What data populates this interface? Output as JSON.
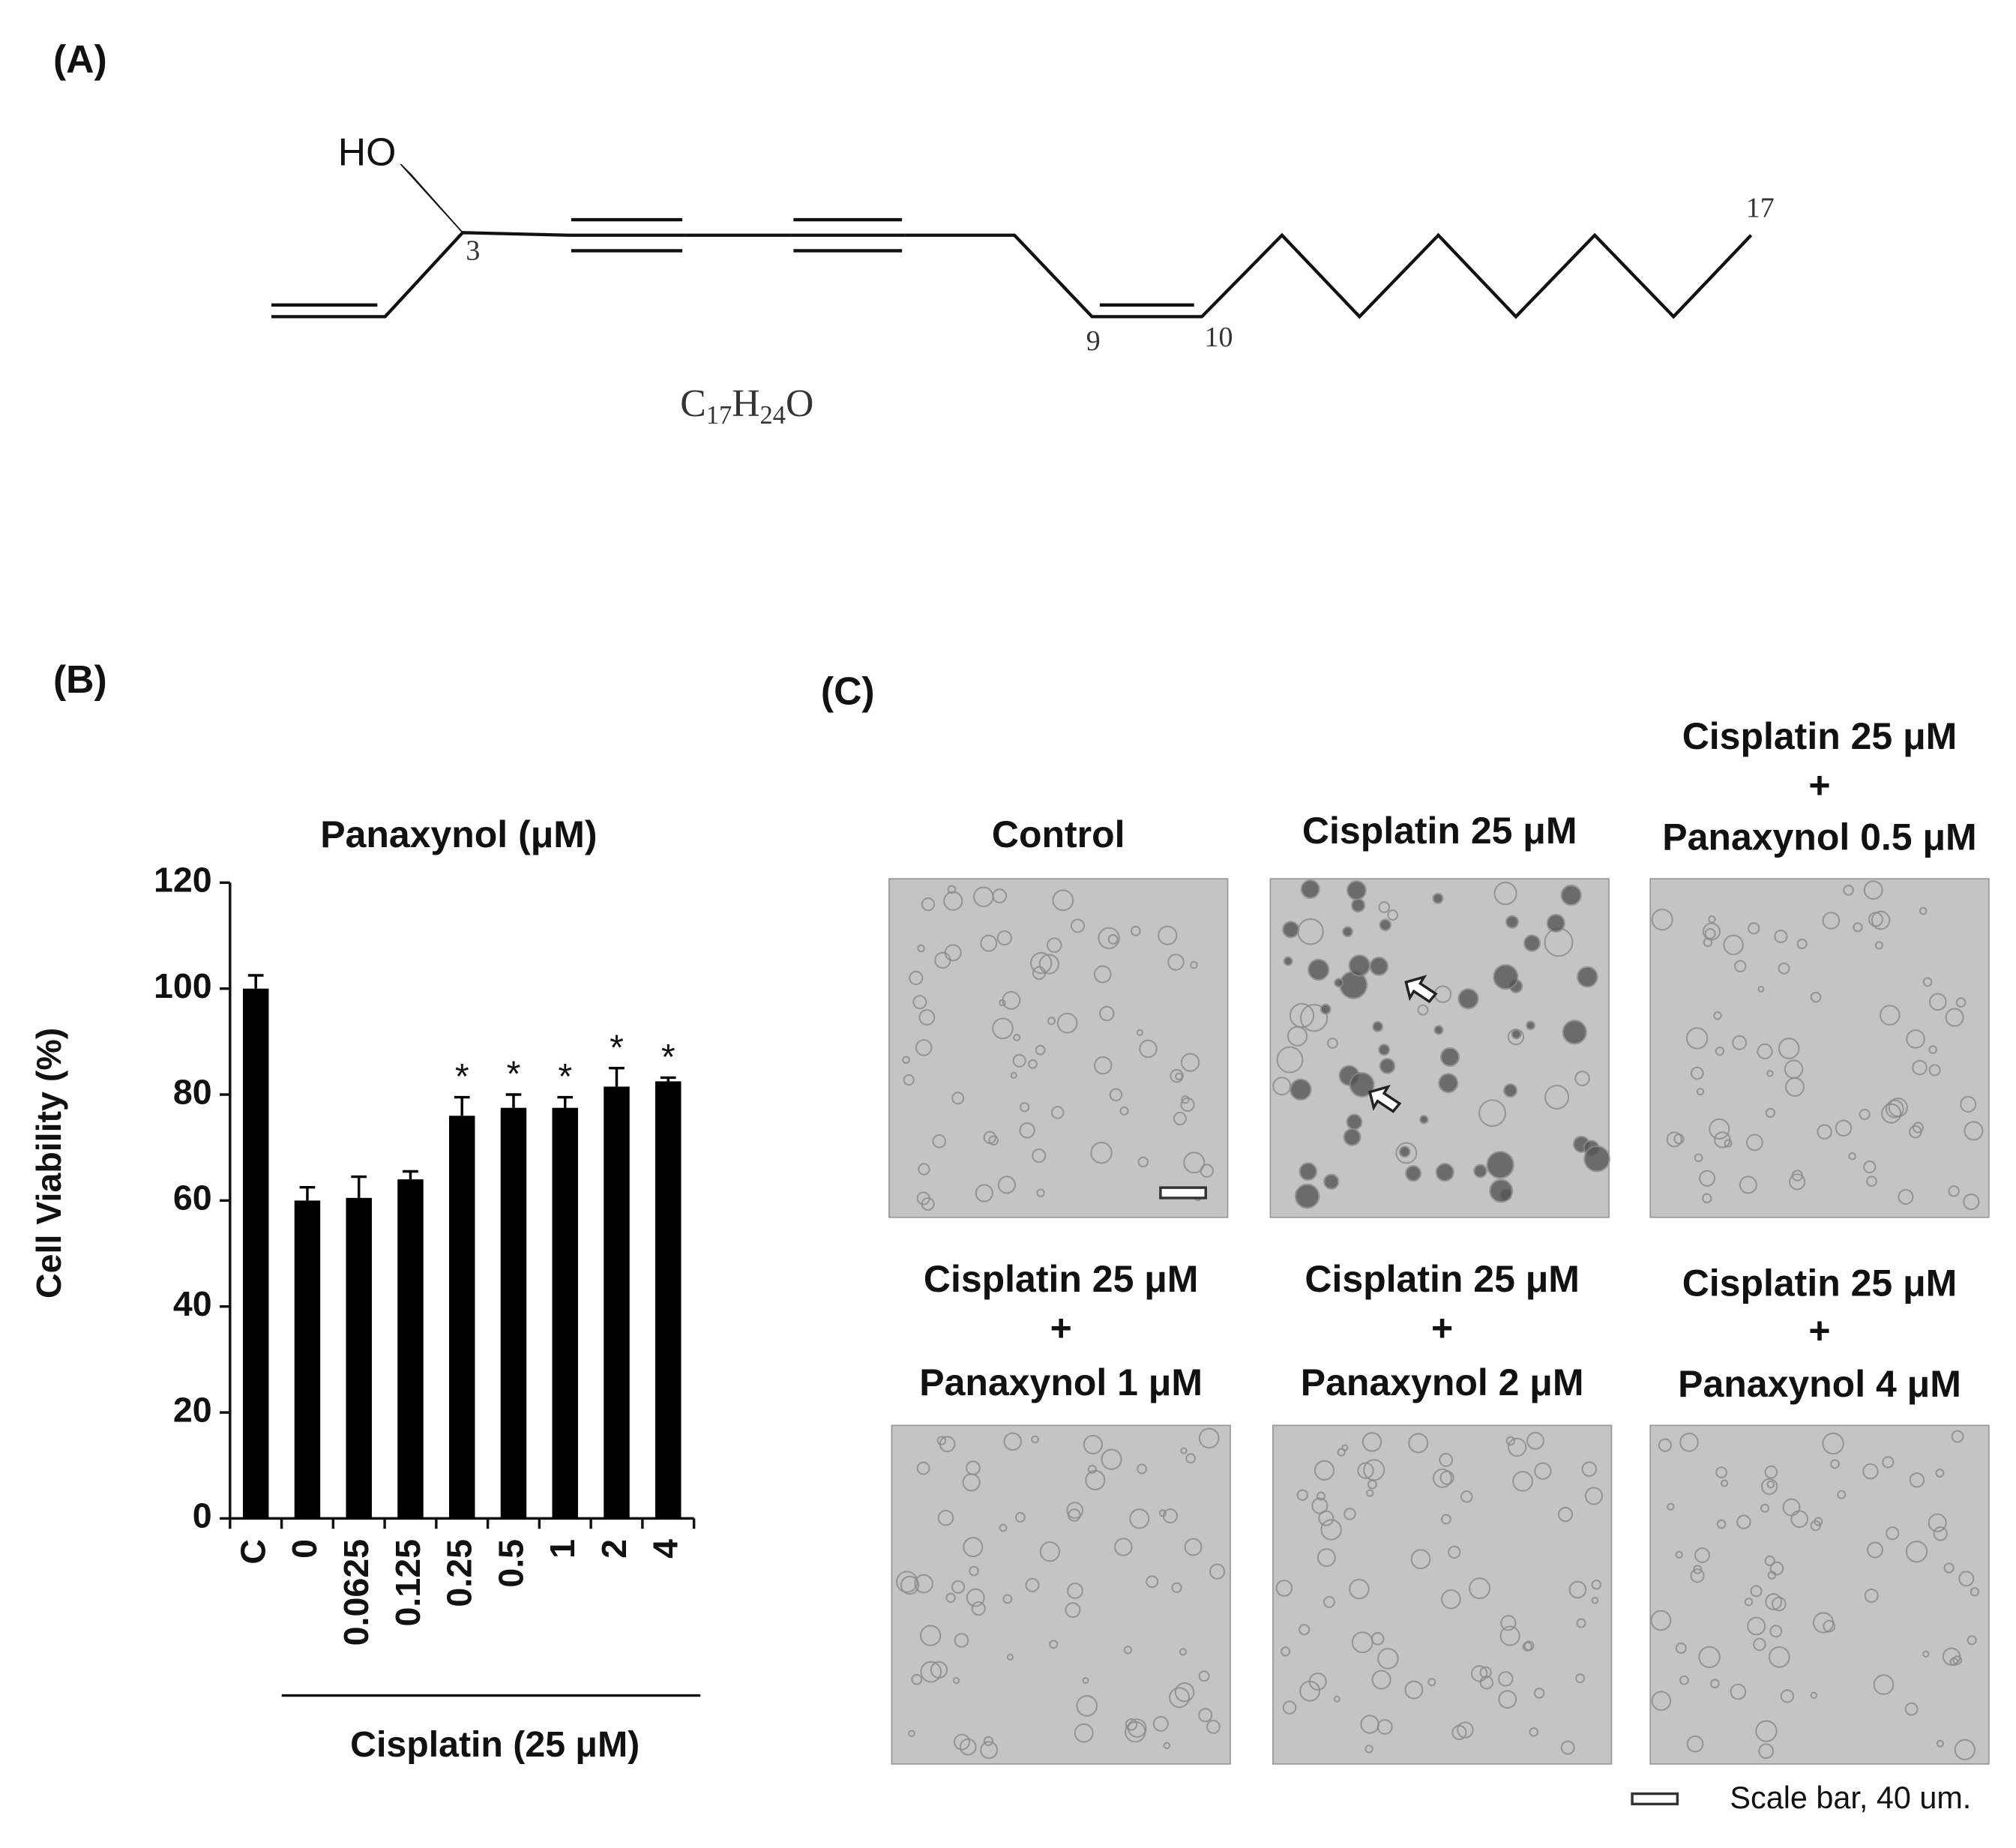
{
  "panel_labels": [
    "(A)",
    "(B)",
    "(C)"
  ],
  "structure": {
    "hydroxyl": "HO",
    "atom_labels": [
      "3",
      "9",
      "10",
      "17"
    ],
    "formula_parts": [
      "C",
      "17",
      "H",
      "24",
      "O"
    ]
  },
  "chart_data": {
    "type": "bar",
    "title": "Panaxynol (μM)",
    "y_label": "Cell Viability (%)",
    "x_label": "Cisplatin (25 μM)",
    "categories": [
      "C",
      "0",
      "0.0625",
      "0.125",
      "0.25",
      "0.5",
      "1",
      "2",
      "4"
    ],
    "values": [
      100,
      60,
      60.5,
      64,
      76,
      77.5,
      77.5,
      81.5,
      82.5
    ],
    "errors": [
      2.5,
      2.5,
      4,
      1.5,
      3.5,
      2.5,
      2,
      3.5,
      0.7
    ],
    "significance": [
      null,
      null,
      null,
      null,
      "*",
      "*",
      "*",
      "*",
      "*"
    ],
    "color": "#000000",
    "ylim": [
      0,
      120
    ],
    "yticks": [
      0,
      20,
      40,
      60,
      80,
      100,
      120
    ]
  },
  "micrographs": [
    {
      "title": [
        "Control"
      ]
    },
    {
      "title": [
        "Cisplatin 25 μM"
      ]
    },
    {
      "title": [
        "Cisplatin 25 μM",
        "+",
        "Panaxynol 0.5 μM"
      ]
    },
    {
      "title": [
        "Cisplatin 25 μM",
        "+",
        "Panaxynol 1 μM"
      ]
    },
    {
      "title": [
        "Cisplatin 25 μM",
        "+",
        "Panaxynol 2 μM"
      ]
    },
    {
      "title": [
        "Cisplatin 25 μM",
        "+",
        "Panaxynol 4 μM"
      ]
    }
  ],
  "scale_bar": "Scale bar, 40 um."
}
